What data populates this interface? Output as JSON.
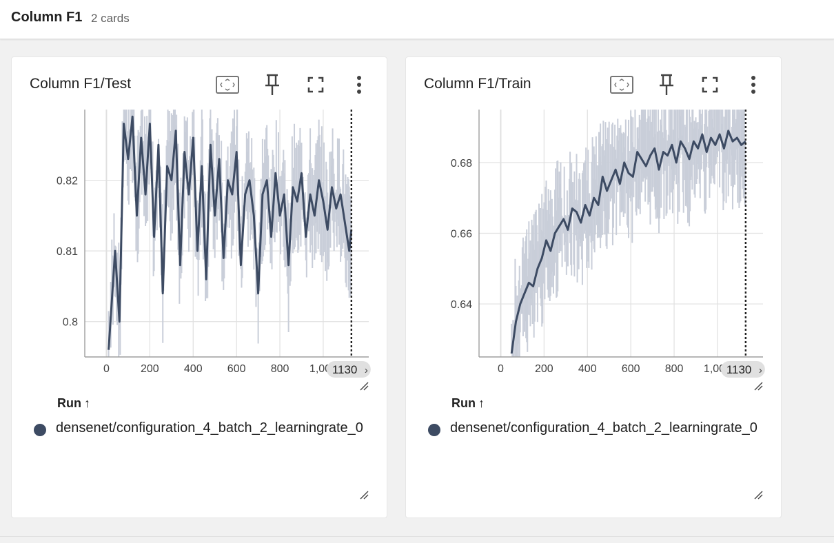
{
  "group": {
    "title": "Column F1",
    "count": "2 cards"
  },
  "icons": [
    "fit-domain-icon",
    "pin-icon",
    "fullscreen-icon",
    "more-vert-icon",
    "resize-handle-icon"
  ],
  "colors": {
    "line": "#3d4b63",
    "band": "#c9ced9",
    "grid": "#e0e0e0",
    "axis": "#9e9e9e",
    "step_marker": "#212121"
  },
  "cards": [
    {
      "title": "Column F1/Test",
      "run_header": "Run",
      "run_arrow": "↑",
      "run_name": "densenet/configuration_4_batch_2_learningrate_0",
      "step_badge": "1130",
      "step_badge_chevron": "›",
      "chart_data": {
        "type": "line",
        "x_ticks": [
          "0",
          "200",
          "400",
          "600",
          "800",
          "1,000"
        ],
        "y_ticks": [
          "0.8",
          "0.81",
          "0.82"
        ],
        "xlim": [
          -100,
          1210
        ],
        "ylim": [
          0.795,
          0.83
        ],
        "cursor_step": 1130,
        "series": [
          {
            "x": [
              10,
              40,
              60,
              80,
              100,
              120,
              140,
              160,
              180,
              200,
              220,
              240,
              260,
              280,
              300,
              320,
              340,
              360,
              380,
              400,
              420,
              440,
              460,
              480,
              500,
              520,
              540,
              560,
              580,
              600,
              620,
              640,
              660,
              680,
              700,
              720,
              740,
              760,
              780,
              800,
              820,
              840,
              860,
              880,
              900,
              920,
              940,
              960,
              980,
              1000,
              1020,
              1040,
              1060,
              1080,
              1100,
              1120,
              1130
            ],
            "values": [
              0.796,
              0.81,
              0.8,
              0.828,
              0.823,
              0.829,
              0.815,
              0.826,
              0.818,
              0.828,
              0.812,
              0.825,
              0.804,
              0.822,
              0.82,
              0.827,
              0.808,
              0.824,
              0.818,
              0.826,
              0.81,
              0.822,
              0.806,
              0.825,
              0.815,
              0.823,
              0.809,
              0.82,
              0.818,
              0.824,
              0.808,
              0.818,
              0.82,
              0.815,
              0.804,
              0.818,
              0.82,
              0.812,
              0.821,
              0.815,
              0.818,
              0.808,
              0.819,
              0.817,
              0.821,
              0.812,
              0.818,
              0.815,
              0.82,
              0.817,
              0.813,
              0.819,
              0.816,
              0.818,
              0.814,
              0.81,
              0.813
            ]
          }
        ]
      }
    },
    {
      "title": "Column F1/Train",
      "run_header": "Run",
      "run_arrow": "↑",
      "run_name": "densenet/configuration_4_batch_2_learningrate_0",
      "step_badge": "1130",
      "step_badge_chevron": "›",
      "chart_data": {
        "type": "line",
        "x_ticks": [
          "0",
          "200",
          "400",
          "600",
          "800",
          "1,000"
        ],
        "y_ticks": [
          "0.64",
          "0.66",
          "0.68"
        ],
        "xlim": [
          -100,
          1210
        ],
        "ylim": [
          0.625,
          0.695
        ],
        "cursor_step": 1130,
        "series": [
          {
            "x": [
              50,
              70,
              90,
              110,
              130,
              150,
              170,
              190,
              210,
              230,
              250,
              270,
              290,
              310,
              330,
              350,
              370,
              390,
              410,
              430,
              450,
              470,
              490,
              510,
              530,
              550,
              570,
              590,
              610,
              630,
              650,
              670,
              690,
              710,
              730,
              750,
              770,
              790,
              810,
              830,
              850,
              870,
              890,
              910,
              930,
              950,
              970,
              990,
              1010,
              1030,
              1050,
              1070,
              1090,
              1110,
              1130
            ],
            "values": [
              0.626,
              0.635,
              0.64,
              0.643,
              0.646,
              0.645,
              0.65,
              0.653,
              0.658,
              0.655,
              0.66,
              0.662,
              0.664,
              0.661,
              0.667,
              0.666,
              0.663,
              0.668,
              0.665,
              0.67,
              0.668,
              0.676,
              0.672,
              0.675,
              0.678,
              0.674,
              0.68,
              0.677,
              0.676,
              0.683,
              0.681,
              0.679,
              0.682,
              0.684,
              0.678,
              0.683,
              0.682,
              0.685,
              0.68,
              0.686,
              0.684,
              0.681,
              0.686,
              0.684,
              0.688,
              0.683,
              0.687,
              0.685,
              0.688,
              0.684,
              0.689,
              0.686,
              0.687,
              0.685,
              0.686
            ]
          }
        ]
      }
    }
  ]
}
